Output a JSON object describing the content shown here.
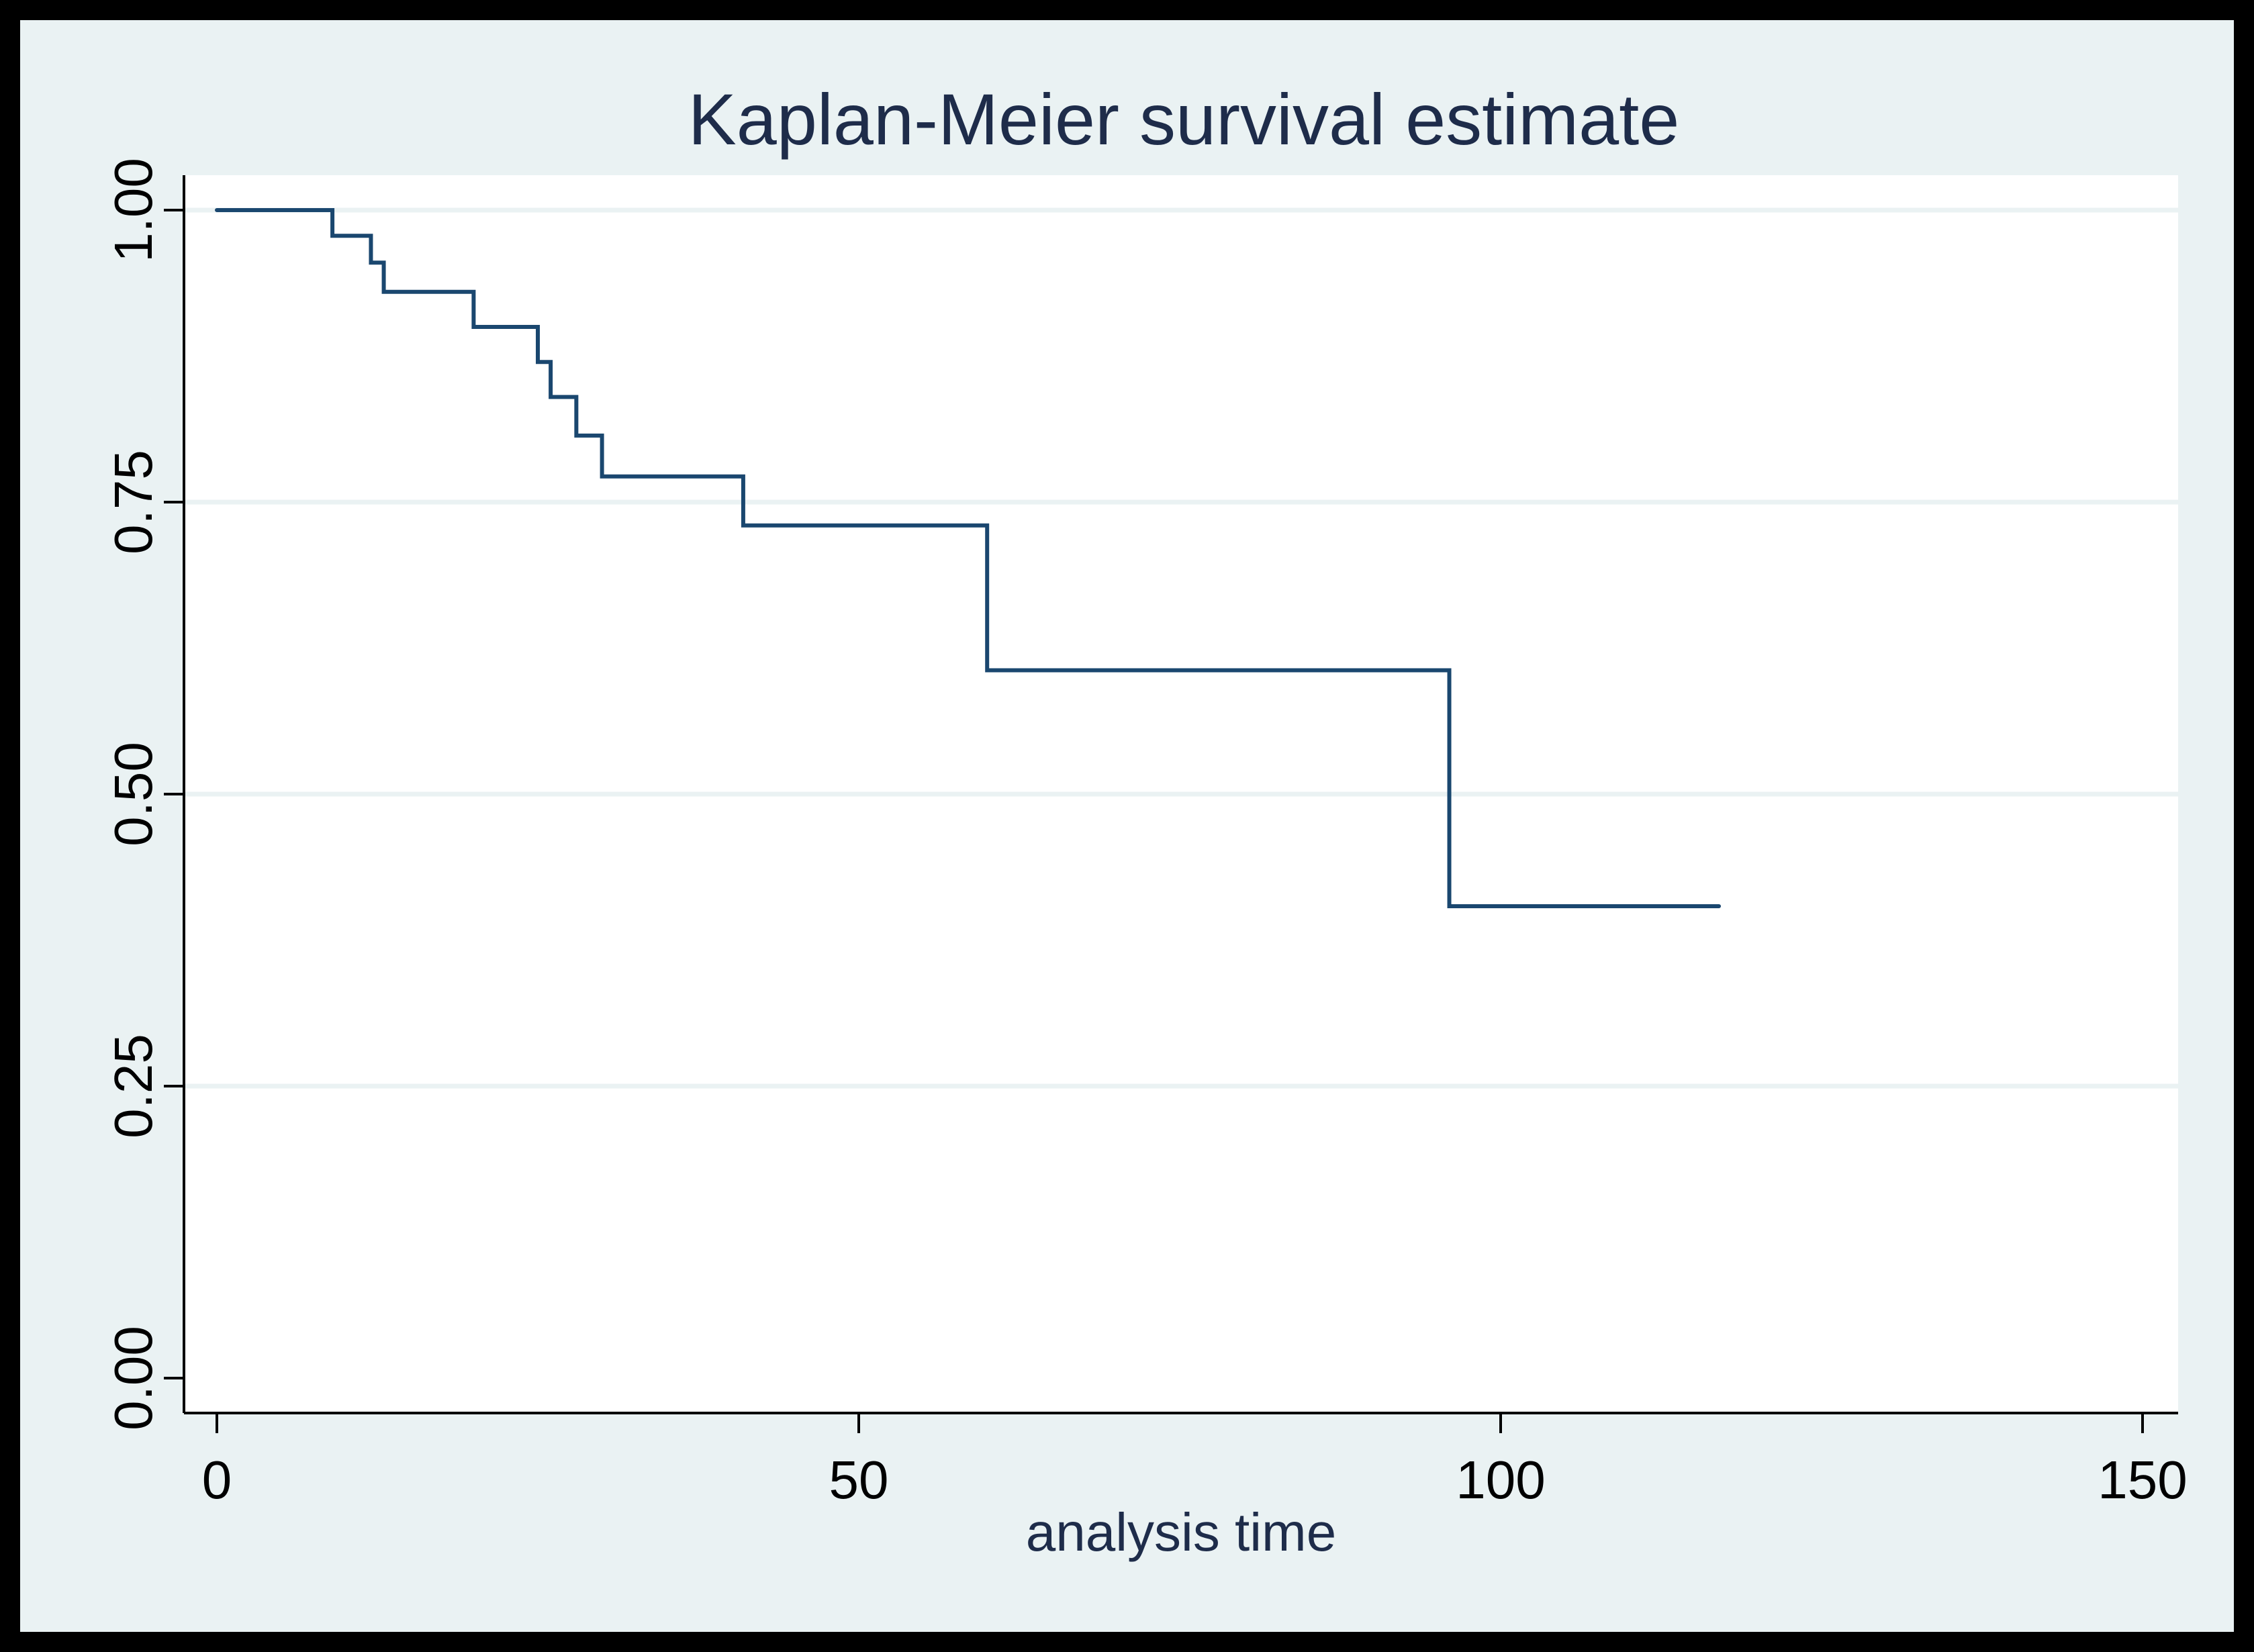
{
  "colors": {
    "frame": "#000000",
    "outer_background": "#eaf2f3",
    "plot_background": "#ffffff",
    "grid": "#eaf2f3",
    "line": "#1a476f",
    "text": "#1e2c4a",
    "axis": "#000000"
  },
  "chart_data": {
    "type": "line",
    "title": "Kaplan-Meier survival estimate",
    "xlabel": "analysis time",
    "ylabel": "",
    "xlim": [
      0,
      150
    ],
    "ylim": [
      0,
      1
    ],
    "x_ticks": [
      0,
      50,
      100,
      150
    ],
    "x_tick_labels": [
      "0",
      "50",
      "100",
      "150"
    ],
    "y_ticks": [
      0,
      0.25,
      0.5,
      0.75,
      1
    ],
    "y_tick_labels": [
      "0.00",
      "0.25",
      "0.50",
      "0.75",
      "1.00"
    ],
    "grid": true,
    "legend": "none",
    "series": [
      {
        "step": "post",
        "x": [
          0,
          9,
          12,
          13,
          20,
          25,
          26,
          28,
          30,
          41,
          60,
          96,
          117
        ],
        "y": [
          1.0,
          0.978,
          0.955,
          0.93,
          0.9,
          0.87,
          0.84,
          0.807,
          0.772,
          0.73,
          0.606,
          0.404,
          0.404
        ]
      }
    ]
  }
}
